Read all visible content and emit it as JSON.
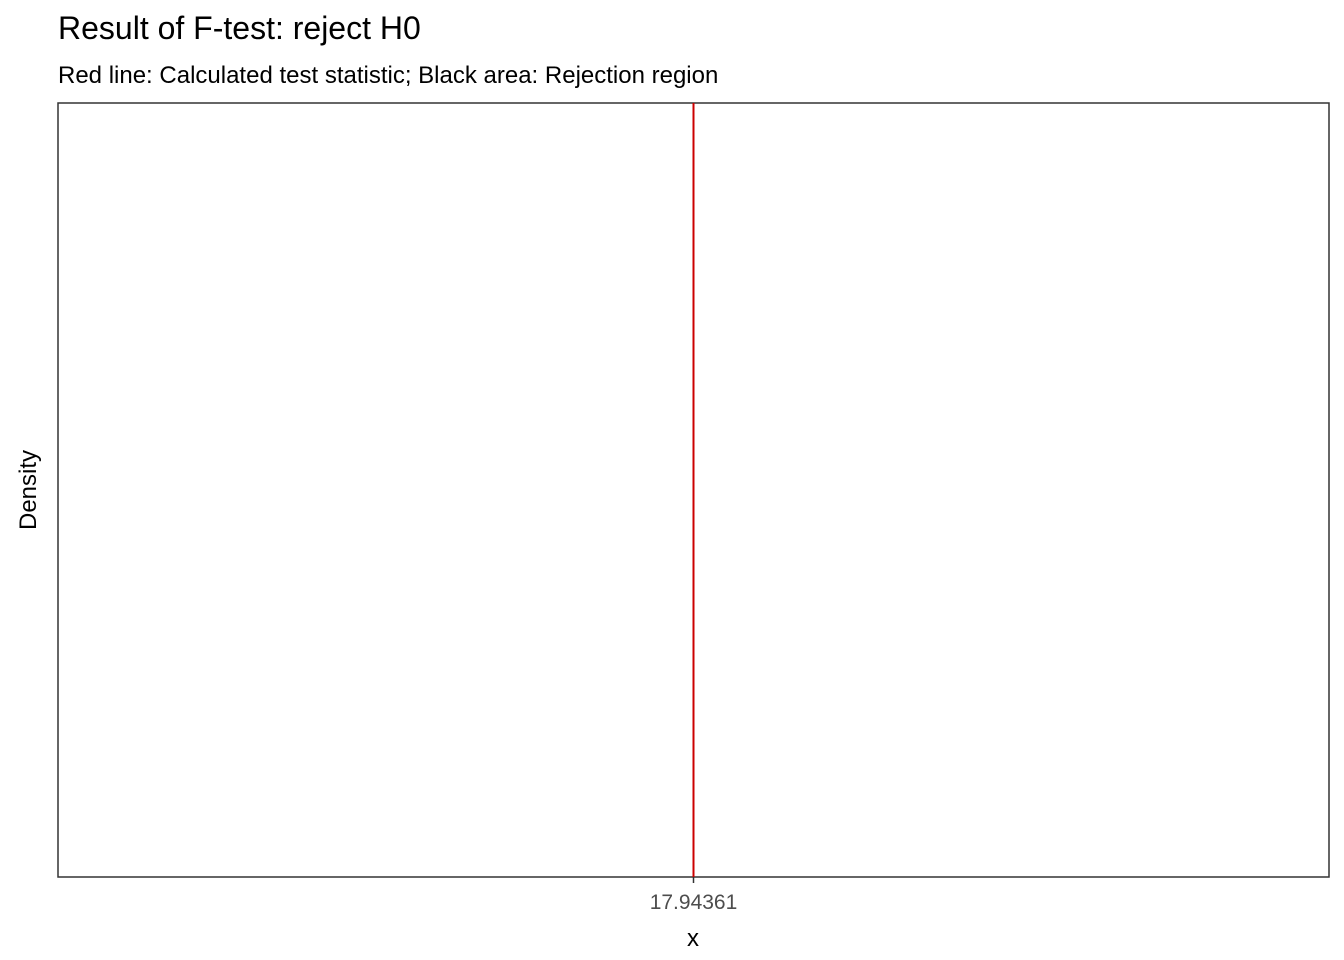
{
  "chart_data": {
    "type": "area",
    "title": "Result of F-test: reject H0",
    "subtitle": "Red line: Calculated test statistic; Black area: Rejection region",
    "xlabel": "x",
    "ylabel": "Density",
    "test_statistic": 17.94361,
    "x_ticks": [
      "17.94361"
    ],
    "xlim": [
      -17.94361,
      53.83083
    ],
    "grid": false,
    "legend": "none",
    "series": []
  },
  "colors": {
    "test_statistic_line": "#cc0000",
    "panel_border": "#333333",
    "text": "#000000",
    "tick_label": "#4d4d4d"
  }
}
